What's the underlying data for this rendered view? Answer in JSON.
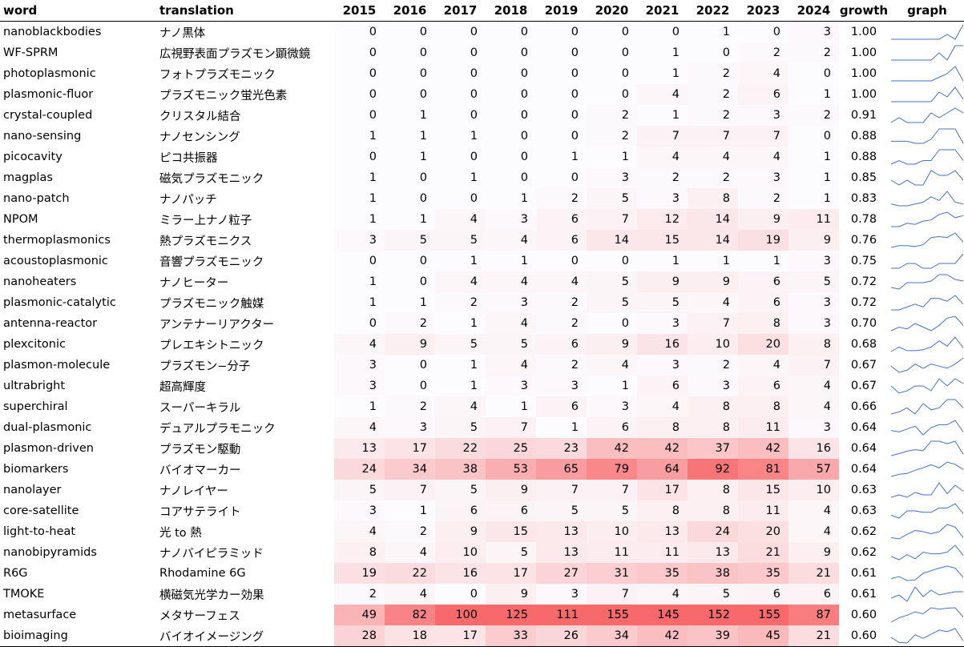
{
  "headers": {
    "word": "word",
    "translation": "translation",
    "years": [
      "2015",
      "2016",
      "2017",
      "2018",
      "2019",
      "2020",
      "2021",
      "2022",
      "2023",
      "2024"
    ],
    "growth": "growth",
    "graph": "graph"
  },
  "colors": {
    "heat_max": "#f8696b",
    "heat_min": "#fcfcff",
    "sparkline": "#4472c4"
  },
  "heat_scale_max": 100,
  "rows": [
    {
      "word": "nanoblackbodies",
      "translation": "ナノ黒体",
      "counts": [
        0,
        0,
        0,
        0,
        0,
        0,
        0,
        1,
        0,
        3
      ],
      "growth": "1.00"
    },
    {
      "word": "WF-SPRM",
      "translation": "広視野表面プラズモン顕微鏡",
      "counts": [
        0,
        0,
        0,
        0,
        0,
        0,
        1,
        0,
        2,
        2
      ],
      "growth": "1.00"
    },
    {
      "word": "photoplasmonic",
      "translation": "フォトプラズモニック",
      "counts": [
        0,
        0,
        0,
        0,
        0,
        0,
        1,
        2,
        4,
        0
      ],
      "growth": "1.00"
    },
    {
      "word": "plasmonic-fluor",
      "translation": "プラズモニック蛍光色素",
      "counts": [
        0,
        0,
        0,
        0,
        0,
        0,
        4,
        2,
        6,
        1
      ],
      "growth": "1.00"
    },
    {
      "word": "crystal-coupled",
      "translation": "クリスタル結合",
      "counts": [
        0,
        1,
        0,
        0,
        0,
        2,
        1,
        2,
        3,
        2
      ],
      "growth": "0.91"
    },
    {
      "word": "nano-sensing",
      "translation": "ナノセンシング",
      "counts": [
        1,
        1,
        1,
        0,
        0,
        2,
        7,
        7,
        7,
        0
      ],
      "growth": "0.88"
    },
    {
      "word": "picocavity",
      "translation": "ピコ共振器",
      "counts": [
        0,
        1,
        0,
        0,
        1,
        1,
        4,
        4,
        4,
        1
      ],
      "growth": "0.88"
    },
    {
      "word": "magplas",
      "translation": "磁気プラズモニック",
      "counts": [
        1,
        0,
        1,
        0,
        0,
        3,
        2,
        2,
        3,
        1
      ],
      "growth": "0.85"
    },
    {
      "word": "nano-patch",
      "translation": "ナノパッチ",
      "counts": [
        1,
        0,
        0,
        1,
        2,
        5,
        3,
        8,
        2,
        1
      ],
      "growth": "0.83"
    },
    {
      "word": "NPOM",
      "translation": "ミラー上ナノ粒子",
      "counts": [
        1,
        1,
        4,
        3,
        6,
        7,
        12,
        14,
        9,
        11
      ],
      "growth": "0.78"
    },
    {
      "word": "thermoplasmonics",
      "translation": "熱プラズモニクス",
      "counts": [
        3,
        5,
        5,
        4,
        6,
        14,
        15,
        14,
        19,
        9
      ],
      "growth": "0.76"
    },
    {
      "word": "acoustoplasmonic",
      "translation": "音響プラズモニック",
      "counts": [
        0,
        0,
        1,
        1,
        0,
        0,
        1,
        1,
        1,
        3
      ],
      "growth": "0.75"
    },
    {
      "word": "nanoheaters",
      "translation": "ナノヒーター",
      "counts": [
        1,
        0,
        4,
        4,
        4,
        5,
        9,
        9,
        6,
        5
      ],
      "growth": "0.72"
    },
    {
      "word": "plasmonic-catalytic",
      "translation": "プラズモニック触媒",
      "counts": [
        1,
        1,
        2,
        3,
        2,
        5,
        5,
        4,
        6,
        3
      ],
      "growth": "0.72"
    },
    {
      "word": "antenna-reactor",
      "translation": "アンテナーリアクター",
      "counts": [
        0,
        2,
        1,
        4,
        2,
        0,
        3,
        7,
        8,
        3
      ],
      "growth": "0.70"
    },
    {
      "word": "plexcitonic",
      "translation": "プレエキシトニック",
      "counts": [
        4,
        9,
        5,
        5,
        6,
        9,
        16,
        10,
        20,
        8
      ],
      "growth": "0.68"
    },
    {
      "word": "plasmon-molecule",
      "translation": "プラズモン−分子",
      "counts": [
        3,
        0,
        1,
        4,
        2,
        4,
        3,
        2,
        4,
        7
      ],
      "growth": "0.67"
    },
    {
      "word": "ultrabright",
      "translation": "超高輝度",
      "counts": [
        3,
        0,
        1,
        3,
        3,
        1,
        6,
        3,
        6,
        4
      ],
      "growth": "0.67"
    },
    {
      "word": "superchiral",
      "translation": "スーパーキラル",
      "counts": [
        1,
        2,
        4,
        1,
        6,
        3,
        4,
        8,
        8,
        4
      ],
      "growth": "0.66"
    },
    {
      "word": "dual-plasmonic",
      "translation": "デュアルプラモニック",
      "counts": [
        4,
        3,
        5,
        7,
        1,
        6,
        8,
        8,
        11,
        3
      ],
      "growth": "0.64"
    },
    {
      "word": "plasmon-driven",
      "translation": "プラズモン駆動",
      "counts": [
        13,
        17,
        22,
        25,
        23,
        42,
        42,
        37,
        42,
        16
      ],
      "growth": "0.64"
    },
    {
      "word": "biomarkers",
      "translation": "バイオマーカー",
      "counts": [
        24,
        34,
        38,
        53,
        65,
        79,
        64,
        92,
        81,
        57
      ],
      "growth": "0.64"
    },
    {
      "word": "nanolayer",
      "translation": "ナノレイヤー",
      "counts": [
        5,
        7,
        5,
        9,
        7,
        7,
        17,
        8,
        15,
        10
      ],
      "growth": "0.63"
    },
    {
      "word": "core-satellite",
      "translation": "コアサテライト",
      "counts": [
        3,
        1,
        6,
        6,
        5,
        5,
        8,
        8,
        11,
        4
      ],
      "growth": "0.63"
    },
    {
      "word": "light-to-heat",
      "translation": "光 to 熱",
      "counts": [
        4,
        2,
        9,
        15,
        13,
        10,
        13,
        24,
        20,
        4
      ],
      "growth": "0.62"
    },
    {
      "word": "nanobipyramids",
      "translation": "ナノバイピラミッド",
      "counts": [
        8,
        4,
        10,
        5,
        13,
        11,
        11,
        13,
        21,
        9
      ],
      "growth": "0.62"
    },
    {
      "word": "R6G",
      "translation": "Rhodamine 6G",
      "counts": [
        19,
        22,
        16,
        17,
        27,
        31,
        35,
        38,
        35,
        21
      ],
      "growth": "0.61"
    },
    {
      "word": "TMOKE",
      "translation": "横磁気光学カー効果",
      "counts": [
        2,
        4,
        0,
        9,
        3,
        7,
        4,
        5,
        6,
        6
      ],
      "growth": "0.61"
    },
    {
      "word": "metasurface",
      "translation": "メタサーフェス",
      "counts": [
        49,
        82,
        100,
        125,
        111,
        155,
        145,
        152,
        155,
        87
      ],
      "growth": "0.60"
    },
    {
      "word": "bioimaging",
      "translation": "バイオイメージング",
      "counts": [
        28,
        18,
        17,
        33,
        26,
        34,
        42,
        39,
        45,
        21
      ],
      "growth": "0.60"
    }
  ]
}
